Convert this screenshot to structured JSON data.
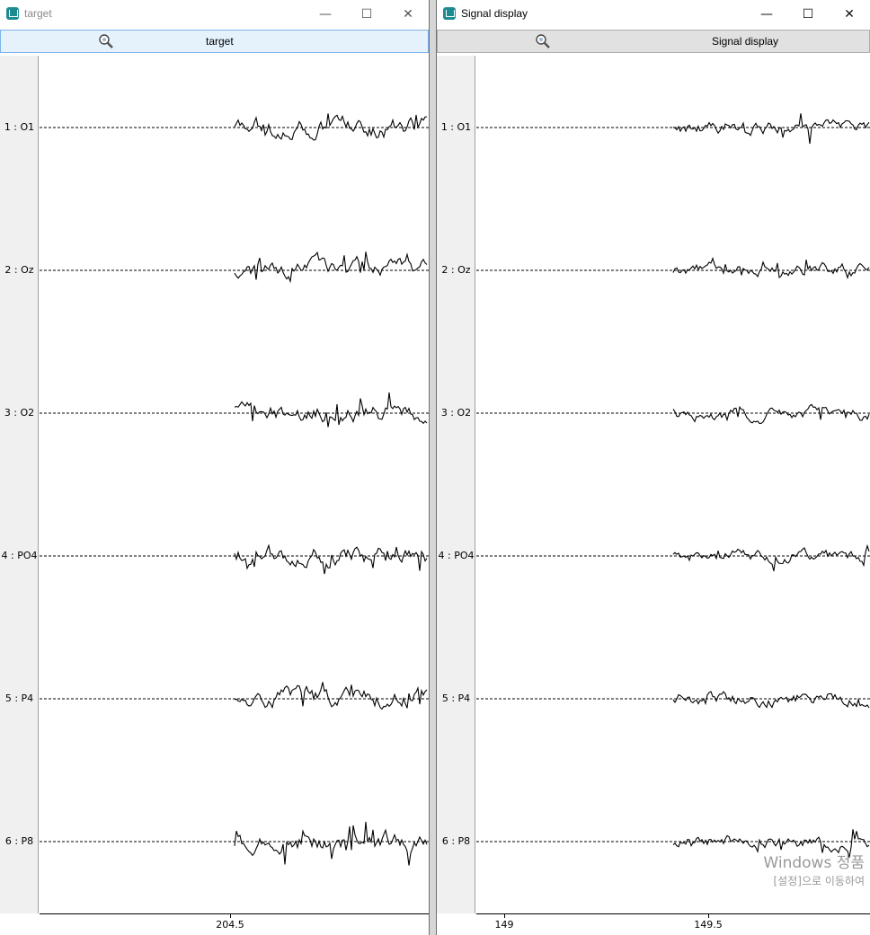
{
  "windows": [
    {
      "id": "left",
      "title": "target",
      "toolbar_label": "target",
      "channels": [
        "1 : O1",
        "2 : Oz",
        "3 : O2",
        "4 : PO4",
        "5 : P4",
        "6 : P8"
      ],
      "ticks": [
        {
          "label": "204.5",
          "pos": 0.49
        }
      ],
      "signal_start": 0.5
    },
    {
      "id": "right",
      "title": "Signal display",
      "toolbar_label": "Signal display",
      "channels": [
        "1 : O1",
        "2 : Oz",
        "3 : O2",
        "4 : PO4",
        "5 : P4",
        "6 : P8"
      ],
      "ticks": [
        {
          "label": "149",
          "pos": 0.07
        },
        {
          "label": "149.5",
          "pos": 0.59
        }
      ],
      "signal_start": 0.5
    }
  ],
  "watermark": {
    "line1": "Windows 정품",
    "line2": "[설정]으로 이동하여"
  },
  "window_controls": {
    "minimize": "—",
    "maximize": "☐",
    "close": "✕"
  }
}
